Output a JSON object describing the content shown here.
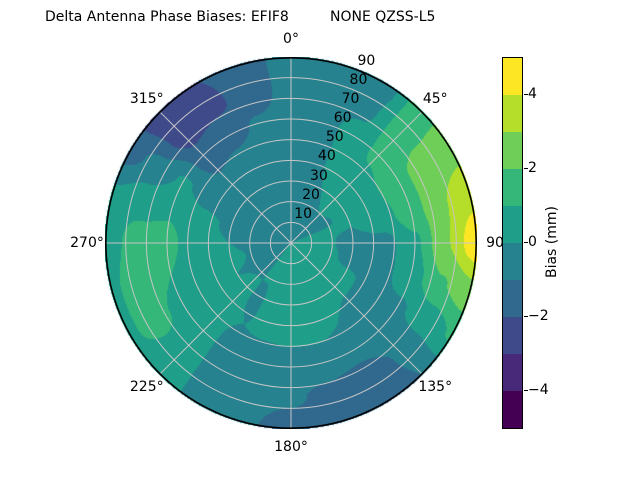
{
  "figure": {
    "title_left": "Delta Antenna Phase Biases: EFIF8",
    "title_right": "NONE QZSS-L5",
    "background": "#ffffff"
  },
  "chart_data": {
    "type": "heatmap",
    "projection": "polar",
    "title": "Delta Antenna Phase Biases: EFIF8          NONE QZSS-L5",
    "theta_zero_location": "top",
    "theta_direction": "clockwise",
    "grid_on": true,
    "grid_color": "#c6c6c6",
    "outline_color": "#000000",
    "theta_tick_labels": [
      {
        "angle_deg": 0,
        "label": "0°"
      },
      {
        "angle_deg": 45,
        "label": "45°"
      },
      {
        "angle_deg": 90,
        "label": "90"
      },
      {
        "angle_deg": 135,
        "label": "135°"
      },
      {
        "angle_deg": 180,
        "label": "180°"
      },
      {
        "angle_deg": 225,
        "label": "225°"
      },
      {
        "angle_deg": 270,
        "label": "270°"
      },
      {
        "angle_deg": 315,
        "label": "315°"
      }
    ],
    "radial_ticks": [
      10,
      20,
      30,
      40,
      50,
      60,
      70,
      80,
      90
    ],
    "radial_label_angle_deg": 22.5,
    "radial_max": 90,
    "levels": [
      -5,
      -4,
      -3,
      -2,
      -1,
      0,
      1,
      2,
      3,
      4,
      5
    ],
    "colormap": "viridis",
    "colors": [
      "#440154",
      "#482878",
      "#3e4a89",
      "#31688e",
      "#26828e",
      "#1f9e89",
      "#35b779",
      "#6ece58",
      "#b5de2b",
      "#fde725"
    ],
    "azimuth_deg": [
      0,
      15,
      30,
      45,
      60,
      75,
      90,
      105,
      120,
      135,
      150,
      165,
      180,
      195,
      210,
      225,
      240,
      255,
      270,
      285,
      300,
      315,
      330,
      345
    ],
    "radius": [
      0,
      15,
      30,
      45,
      60,
      75,
      90
    ],
    "values_bias_mm": [
      [
        0.0,
        -0.4,
        -0.5,
        -0.6,
        -0.7,
        -0.6,
        -0.4
      ],
      [
        0.0,
        -0.3,
        -0.4,
        -0.4,
        -0.4,
        -0.6,
        -0.6
      ],
      [
        0.0,
        -0.2,
        0.0,
        0.3,
        0.4,
        -0.3,
        -0.7
      ],
      [
        0.0,
        -0.1,
        0.3,
        0.7,
        1.2,
        1.6,
        1.7
      ],
      [
        0.0,
        -0.1,
        0.1,
        0.8,
        1.8,
        2.4,
        2.7
      ],
      [
        0.0,
        0.1,
        0.0,
        0.6,
        1.5,
        2.9,
        3.7
      ],
      [
        0.0,
        0.2,
        -0.3,
        -0.4,
        0.8,
        2.9,
        4.7
      ],
      [
        0.0,
        0.3,
        -0.2,
        -0.3,
        0.5,
        1.9,
        2.7
      ],
      [
        0.0,
        0.3,
        0.1,
        -0.2,
        -0.1,
        0.4,
        1.1
      ],
      [
        0.0,
        0.4,
        0.2,
        -0.3,
        -0.5,
        -0.9,
        -1.0
      ],
      [
        0.0,
        0.5,
        0.4,
        0.0,
        -0.6,
        -1.5,
        -1.8
      ],
      [
        0.0,
        0.6,
        0.5,
        0.2,
        -0.5,
        -1.2,
        -1.6
      ],
      [
        0.0,
        0.6,
        0.5,
        0.2,
        -0.5,
        -0.9,
        -1.3
      ],
      [
        0.0,
        0.4,
        0.4,
        0.1,
        -0.5,
        -0.8,
        -0.9
      ],
      [
        0.0,
        0.1,
        -0.1,
        0.0,
        -0.3,
        -0.4,
        -0.5
      ],
      [
        0.0,
        -0.1,
        0.1,
        0.1,
        0.3,
        0.5,
        0.7
      ],
      [
        0.0,
        -0.1,
        0.0,
        0.2,
        0.7,
        1.3,
        0.9
      ],
      [
        0.0,
        -0.1,
        0.1,
        0.3,
        1.0,
        1.6,
        0.8
      ],
      [
        0.0,
        -0.2,
        0.0,
        0.3,
        1.3,
        1.4,
        0.5
      ],
      [
        0.0,
        -0.3,
        -0.1,
        0.2,
        0.9,
        0.7,
        0.2
      ],
      [
        0.0,
        -0.3,
        -0.4,
        -0.3,
        0.1,
        -0.7,
        -1.4
      ],
      [
        0.0,
        -0.4,
        -0.6,
        -0.9,
        -1.6,
        -2.6,
        -2.6
      ],
      [
        0.0,
        -0.4,
        -0.5,
        -0.7,
        -1.3,
        -2.2,
        -2.0
      ],
      [
        0.0,
        -0.4,
        -0.5,
        -0.6,
        -0.9,
        -1.5,
        -1.5
      ]
    ],
    "colorbar": {
      "label": "Bias (mm)",
      "range": [
        -5,
        5
      ],
      "tick_values": [
        4,
        2,
        0,
        -2,
        -4
      ],
      "tick_labels": [
        "4",
        "2",
        "0",
        "−2",
        "−4"
      ]
    }
  }
}
